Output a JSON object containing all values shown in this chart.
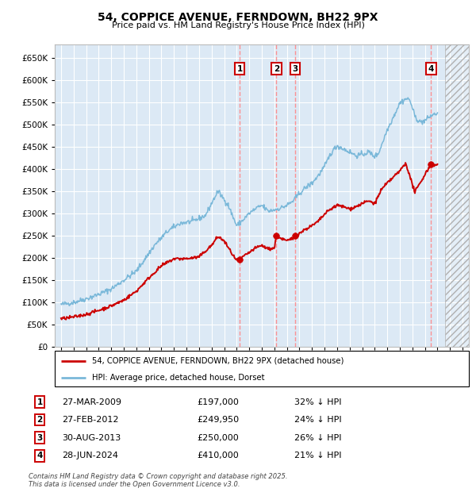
{
  "title": "54, COPPICE AVENUE, FERNDOWN, BH22 9PX",
  "subtitle": "Price paid vs. HM Land Registry's House Price Index (HPI)",
  "xlim": [
    1994.5,
    2027.5
  ],
  "ylim": [
    0,
    680000
  ],
  "yticks": [
    0,
    50000,
    100000,
    150000,
    200000,
    250000,
    300000,
    350000,
    400000,
    450000,
    500000,
    550000,
    600000,
    650000
  ],
  "background_color": "#dce9f5",
  "grid_color": "#ffffff",
  "hpi_line_color": "#7ab8d9",
  "price_line_color": "#cc0000",
  "vline_color": "#ff8888",
  "transactions": [
    {
      "id": 1,
      "date_str": "27-MAR-2009",
      "date_num": 2009.23,
      "price": 197000,
      "pct": "32%",
      "dir": "↓"
    },
    {
      "id": 2,
      "date_str": "27-FEB-2012",
      "date_num": 2012.16,
      "price": 249950,
      "pct": "24%",
      "dir": "↓"
    },
    {
      "id": 3,
      "date_str": "30-AUG-2013",
      "date_num": 2013.66,
      "price": 250000,
      "pct": "26%",
      "dir": "↓"
    },
    {
      "id": 4,
      "date_str": "28-JUN-2024",
      "date_num": 2024.49,
      "price": 410000,
      "pct": "21%",
      "dir": "↓"
    }
  ],
  "legend_line1": "54, COPPICE AVENUE, FERNDOWN, BH22 9PX (detached house)",
  "legend_line2": "HPI: Average price, detached house, Dorset",
  "footnote": "Contains HM Land Registry data © Crown copyright and database right 2025.\nThis data is licensed under the Open Government Licence v3.0.",
  "future_hatch_start": 2025.58,
  "hpi_anchors": [
    [
      1995.0,
      95000
    ],
    [
      1996.0,
      100000
    ],
    [
      1997.0,
      108000
    ],
    [
      1998.0,
      118000
    ],
    [
      1999.0,
      130000
    ],
    [
      2000.0,
      150000
    ],
    [
      2001.0,
      170000
    ],
    [
      2002.0,
      210000
    ],
    [
      2002.5,
      230000
    ],
    [
      2003.5,
      260000
    ],
    [
      2004.5,
      278000
    ],
    [
      2005.5,
      282000
    ],
    [
      2006.5,
      295000
    ],
    [
      2007.5,
      350000
    ],
    [
      2008.3,
      320000
    ],
    [
      2009.0,
      272000
    ],
    [
      2009.5,
      285000
    ],
    [
      2010.0,
      300000
    ],
    [
      2010.5,
      310000
    ],
    [
      2011.0,
      318000
    ],
    [
      2011.5,
      305000
    ],
    [
      2012.0,
      308000
    ],
    [
      2012.5,
      312000
    ],
    [
      2013.0,
      318000
    ],
    [
      2013.5,
      328000
    ],
    [
      2014.0,
      345000
    ],
    [
      2014.5,
      358000
    ],
    [
      2015.0,
      368000
    ],
    [
      2015.5,
      385000
    ],
    [
      2016.0,
      405000
    ],
    [
      2016.5,
      435000
    ],
    [
      2017.0,
      452000
    ],
    [
      2017.5,
      445000
    ],
    [
      2018.0,
      438000
    ],
    [
      2018.5,
      430000
    ],
    [
      2019.0,
      432000
    ],
    [
      2019.5,
      438000
    ],
    [
      2020.0,
      428000
    ],
    [
      2020.3,
      435000
    ],
    [
      2020.6,
      458000
    ],
    [
      2021.0,
      488000
    ],
    [
      2021.5,
      518000
    ],
    [
      2022.0,
      548000
    ],
    [
      2022.5,
      558000
    ],
    [
      2022.8,
      555000
    ],
    [
      2023.2,
      518000
    ],
    [
      2023.6,
      505000
    ],
    [
      2024.0,
      508000
    ],
    [
      2024.5,
      520000
    ],
    [
      2025.0,
      525000
    ]
  ],
  "price_anchors": [
    [
      1995.0,
      63000
    ],
    [
      1996.0,
      67000
    ],
    [
      1997.0,
      73000
    ],
    [
      1998.0,
      82000
    ],
    [
      1999.0,
      92000
    ],
    [
      2000.0,
      105000
    ],
    [
      2001.0,
      125000
    ],
    [
      2002.0,
      155000
    ],
    [
      2003.0,
      182000
    ],
    [
      2004.0,
      198000
    ],
    [
      2005.0,
      198000
    ],
    [
      2006.0,
      202000
    ],
    [
      2007.0,
      228000
    ],
    [
      2007.5,
      248000
    ],
    [
      2008.0,
      238000
    ],
    [
      2008.5,
      215000
    ],
    [
      2009.0,
      193000
    ],
    [
      2009.23,
      197000
    ],
    [
      2009.5,
      202000
    ],
    [
      2010.0,
      212000
    ],
    [
      2010.5,
      222000
    ],
    [
      2011.0,
      228000
    ],
    [
      2011.5,
      220000
    ],
    [
      2012.0,
      222000
    ],
    [
      2012.16,
      249950
    ],
    [
      2012.5,
      244000
    ],
    [
      2013.0,
      238000
    ],
    [
      2013.5,
      244000
    ],
    [
      2013.66,
      250000
    ],
    [
      2014.0,
      255000
    ],
    [
      2014.5,
      265000
    ],
    [
      2015.0,
      272000
    ],
    [
      2015.5,
      282000
    ],
    [
      2016.0,
      298000
    ],
    [
      2016.5,
      310000
    ],
    [
      2017.0,
      318000
    ],
    [
      2017.5,
      315000
    ],
    [
      2018.0,
      310000
    ],
    [
      2018.5,
      315000
    ],
    [
      2019.0,
      322000
    ],
    [
      2019.5,
      328000
    ],
    [
      2020.0,
      322000
    ],
    [
      2020.5,
      352000
    ],
    [
      2021.0,
      368000
    ],
    [
      2021.5,
      382000
    ],
    [
      2022.0,
      395000
    ],
    [
      2022.3,
      408000
    ],
    [
      2022.5,
      412000
    ],
    [
      2022.8,
      382000
    ],
    [
      2023.2,
      348000
    ],
    [
      2023.7,
      372000
    ],
    [
      2024.0,
      388000
    ],
    [
      2024.49,
      410000
    ],
    [
      2025.0,
      408000
    ]
  ]
}
